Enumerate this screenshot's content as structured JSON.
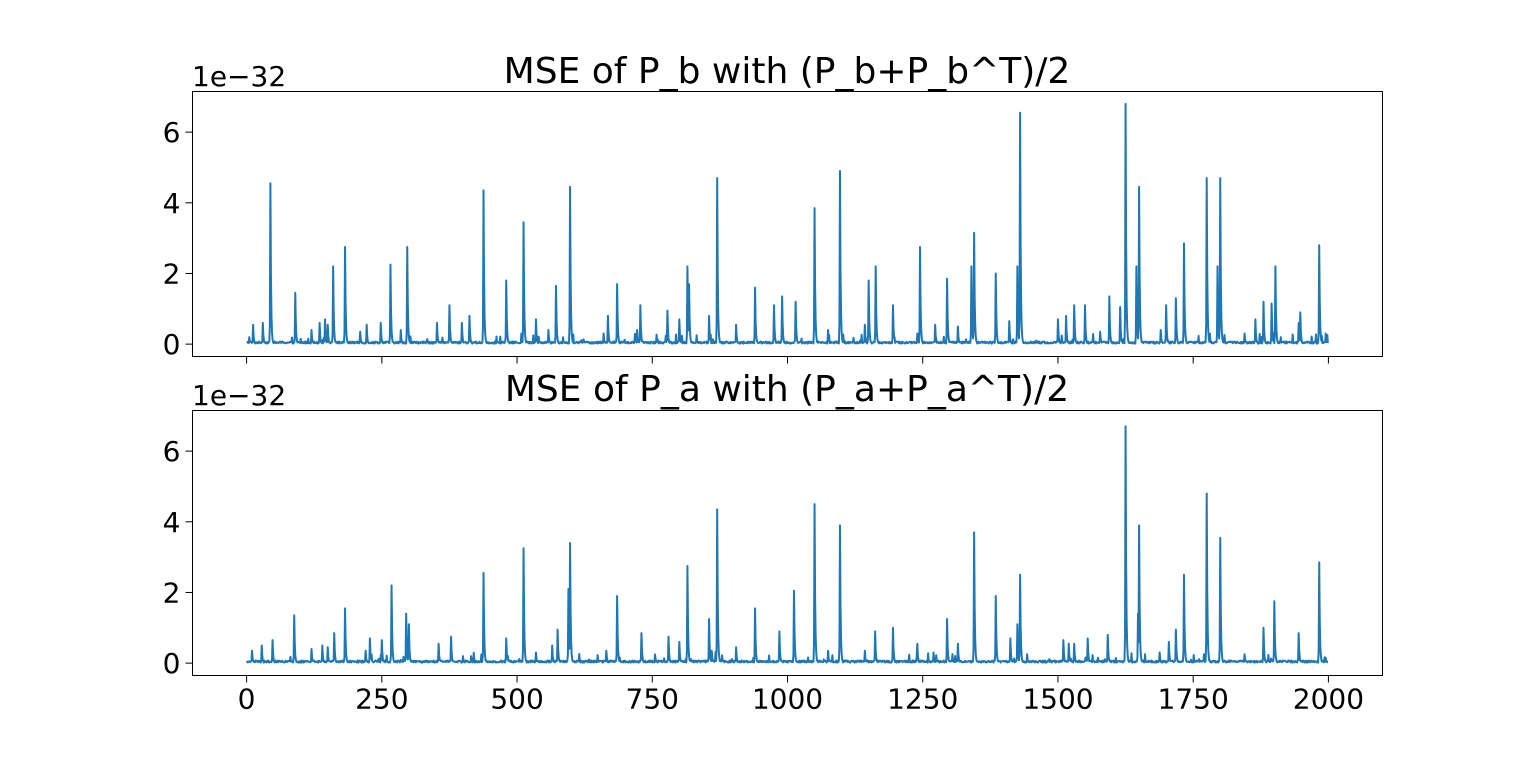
{
  "chart_data": [
    {
      "type": "line",
      "title": "MSE of P_b with (P_b+P_b^T)/2",
      "y_offset_label": "1e−32",
      "y_scale_exponent": -32,
      "xlim": [
        -100,
        2100
      ],
      "ylim": [
        -0.35,
        7.15
      ],
      "x_ticks": [
        0,
        250,
        500,
        750,
        1000,
        1250,
        1500,
        1750,
        2000
      ],
      "x_tick_labels": [],
      "y_ticks": [
        0,
        2,
        4,
        6
      ],
      "y_tick_labels": [
        "0",
        "2",
        "4",
        "6"
      ],
      "grid": false,
      "color": "#1f77b4",
      "n_points": 2000,
      "baseline_approx": 0.05,
      "series": [
        {
          "spikes": [
            [
              5,
              0.2
            ],
            [
              12,
              0.55
            ],
            [
              30,
              0.6
            ],
            [
              44,
              4.55
            ],
            [
              90,
              1.45
            ],
            [
              100,
              0.15
            ],
            [
              120,
              0.4
            ],
            [
              135,
              0.6
            ],
            [
              145,
              0.7
            ],
            [
              150,
              0.55
            ],
            [
              160,
              2.2
            ],
            [
              182,
              2.75
            ],
            [
              210,
              0.35
            ],
            [
              222,
              0.55
            ],
            [
              248,
              0.6
            ],
            [
              266,
              2.25
            ],
            [
              285,
              0.4
            ],
            [
              297,
              2.75
            ],
            [
              352,
              0.6
            ],
            [
              375,
              1.1
            ],
            [
              398,
              0.6
            ],
            [
              412,
              0.8
            ],
            [
              438,
              4.35
            ],
            [
              480,
              1.8
            ],
            [
              508,
              0.3
            ],
            [
              512,
              3.45
            ],
            [
              535,
              0.7
            ],
            [
              558,
              0.4
            ],
            [
              572,
              1.65
            ],
            [
              598,
              4.45
            ],
            [
              660,
              0.3
            ],
            [
              668,
              0.8
            ],
            [
              685,
              1.7
            ],
            [
              722,
              0.4
            ],
            [
              728,
              1.1
            ],
            [
              778,
              0.95
            ],
            [
              800,
              0.7
            ],
            [
              815,
              2.2
            ],
            [
              818,
              1.7
            ],
            [
              855,
              0.8
            ],
            [
              870,
              4.7
            ],
            [
              905,
              0.55
            ],
            [
              940,
              1.6
            ],
            [
              975,
              1.1
            ],
            [
              990,
              1.35
            ],
            [
              1015,
              1.2
            ],
            [
              1050,
              3.85
            ],
            [
              1075,
              0.4
            ],
            [
              1097,
              4.9
            ],
            [
              1143,
              0.55
            ],
            [
              1150,
              1.8
            ],
            [
              1163,
              2.2
            ],
            [
              1195,
              1.1
            ],
            [
              1240,
              0.3
            ],
            [
              1245,
              2.75
            ],
            [
              1273,
              0.55
            ],
            [
              1295,
              1.85
            ],
            [
              1315,
              0.5
            ],
            [
              1340,
              2.2
            ],
            [
              1345,
              3.15
            ],
            [
              1385,
              2.0
            ],
            [
              1410,
              0.65
            ],
            [
              1425,
              2.2
            ],
            [
              1430,
              6.55
            ],
            [
              1500,
              0.7
            ],
            [
              1515,
              0.8
            ],
            [
              1530,
              1.1
            ],
            [
              1550,
              1.1
            ],
            [
              1578,
              0.35
            ],
            [
              1595,
              1.35
            ],
            [
              1615,
              1.05
            ],
            [
              1625,
              6.8
            ],
            [
              1645,
              2.2
            ],
            [
              1650,
              4.45
            ],
            [
              1690,
              0.4
            ],
            [
              1700,
              1.1
            ],
            [
              1718,
              1.3
            ],
            [
              1733,
              2.85
            ],
            [
              1775,
              4.7
            ],
            [
              1795,
              2.2
            ],
            [
              1800,
              4.7
            ],
            [
              1845,
              0.3
            ],
            [
              1865,
              0.7
            ],
            [
              1880,
              1.2
            ],
            [
              1895,
              1.15
            ],
            [
              1902,
              2.2
            ],
            [
              1945,
              0.6
            ],
            [
              1948,
              0.9
            ],
            [
              1983,
              2.8
            ],
            [
              1995,
              0.3
            ]
          ]
        }
      ]
    },
    {
      "type": "line",
      "title": "MSE of P_a with (P_a+P_a^T)/2",
      "y_offset_label": "1e−32",
      "y_scale_exponent": -32,
      "xlim": [
        -100,
        2100
      ],
      "ylim": [
        -0.35,
        7.15
      ],
      "x_ticks": [
        0,
        250,
        500,
        750,
        1000,
        1250,
        1500,
        1750,
        2000
      ],
      "x_tick_labels": [
        "0",
        "250",
        "500",
        "750",
        "1000",
        "1250",
        "1500",
        "1750",
        "2000"
      ],
      "y_ticks": [
        0,
        2,
        4,
        6
      ],
      "y_tick_labels": [
        "0",
        "2",
        "4",
        "6"
      ],
      "grid": false,
      "color": "#1f77b4",
      "n_points": 2000,
      "baseline_approx": 0.05,
      "series": [
        {
          "spikes": [
            [
              10,
              0.35
            ],
            [
              28,
              0.5
            ],
            [
              48,
              0.65
            ],
            [
              88,
              1.35
            ],
            [
              120,
              0.4
            ],
            [
              140,
              0.5
            ],
            [
              150,
              0.45
            ],
            [
              162,
              0.85
            ],
            [
              182,
              1.55
            ],
            [
              220,
              0.35
            ],
            [
              228,
              0.7
            ],
            [
              250,
              0.65
            ],
            [
              268,
              2.2
            ],
            [
              295,
              1.4
            ],
            [
              300,
              1.1
            ],
            [
              355,
              0.55
            ],
            [
              378,
              0.75
            ],
            [
              400,
              0.2
            ],
            [
              415,
              0.2
            ],
            [
              438,
              2.55
            ],
            [
              480,
              0.7
            ],
            [
              512,
              3.25
            ],
            [
              535,
              0.3
            ],
            [
              565,
              0.5
            ],
            [
              575,
              0.95
            ],
            [
              595,
              2.1
            ],
            [
              598,
              3.4
            ],
            [
              665,
              0.35
            ],
            [
              685,
              1.9
            ],
            [
              730,
              0.85
            ],
            [
              780,
              0.75
            ],
            [
              800,
              0.6
            ],
            [
              815,
              2.75
            ],
            [
              855,
              1.25
            ],
            [
              860,
              0.35
            ],
            [
              870,
              4.35
            ],
            [
              905,
              0.45
            ],
            [
              940,
              1.55
            ],
            [
              985,
              0.9
            ],
            [
              1012,
              2.05
            ],
            [
              1050,
              4.5
            ],
            [
              1075,
              0.35
            ],
            [
              1097,
              3.9
            ],
            [
              1143,
              0.35
            ],
            [
              1162,
              0.9
            ],
            [
              1195,
              1.0
            ],
            [
              1240,
              0.55
            ],
            [
              1270,
              0.3
            ],
            [
              1295,
              1.25
            ],
            [
              1315,
              0.55
            ],
            [
              1345,
              3.7
            ],
            [
              1385,
              1.9
            ],
            [
              1412,
              0.7
            ],
            [
              1425,
              1.1
            ],
            [
              1430,
              2.5
            ],
            [
              1510,
              0.65
            ],
            [
              1520,
              0.55
            ],
            [
              1530,
              0.55
            ],
            [
              1555,
              0.7
            ],
            [
              1592,
              0.8
            ],
            [
              1625,
              6.7
            ],
            [
              1648,
              1.4
            ],
            [
              1650,
              3.9
            ],
            [
              1688,
              0.3
            ],
            [
              1705,
              0.6
            ],
            [
              1718,
              0.95
            ],
            [
              1733,
              2.5
            ],
            [
              1775,
              4.8
            ],
            [
              1800,
              3.55
            ],
            [
              1845,
              0.25
            ],
            [
              1880,
              1.0
            ],
            [
              1900,
              1.75
            ],
            [
              1945,
              0.85
            ],
            [
              1983,
              2.85
            ],
            [
              1995,
              0.15
            ]
          ]
        }
      ]
    }
  ]
}
